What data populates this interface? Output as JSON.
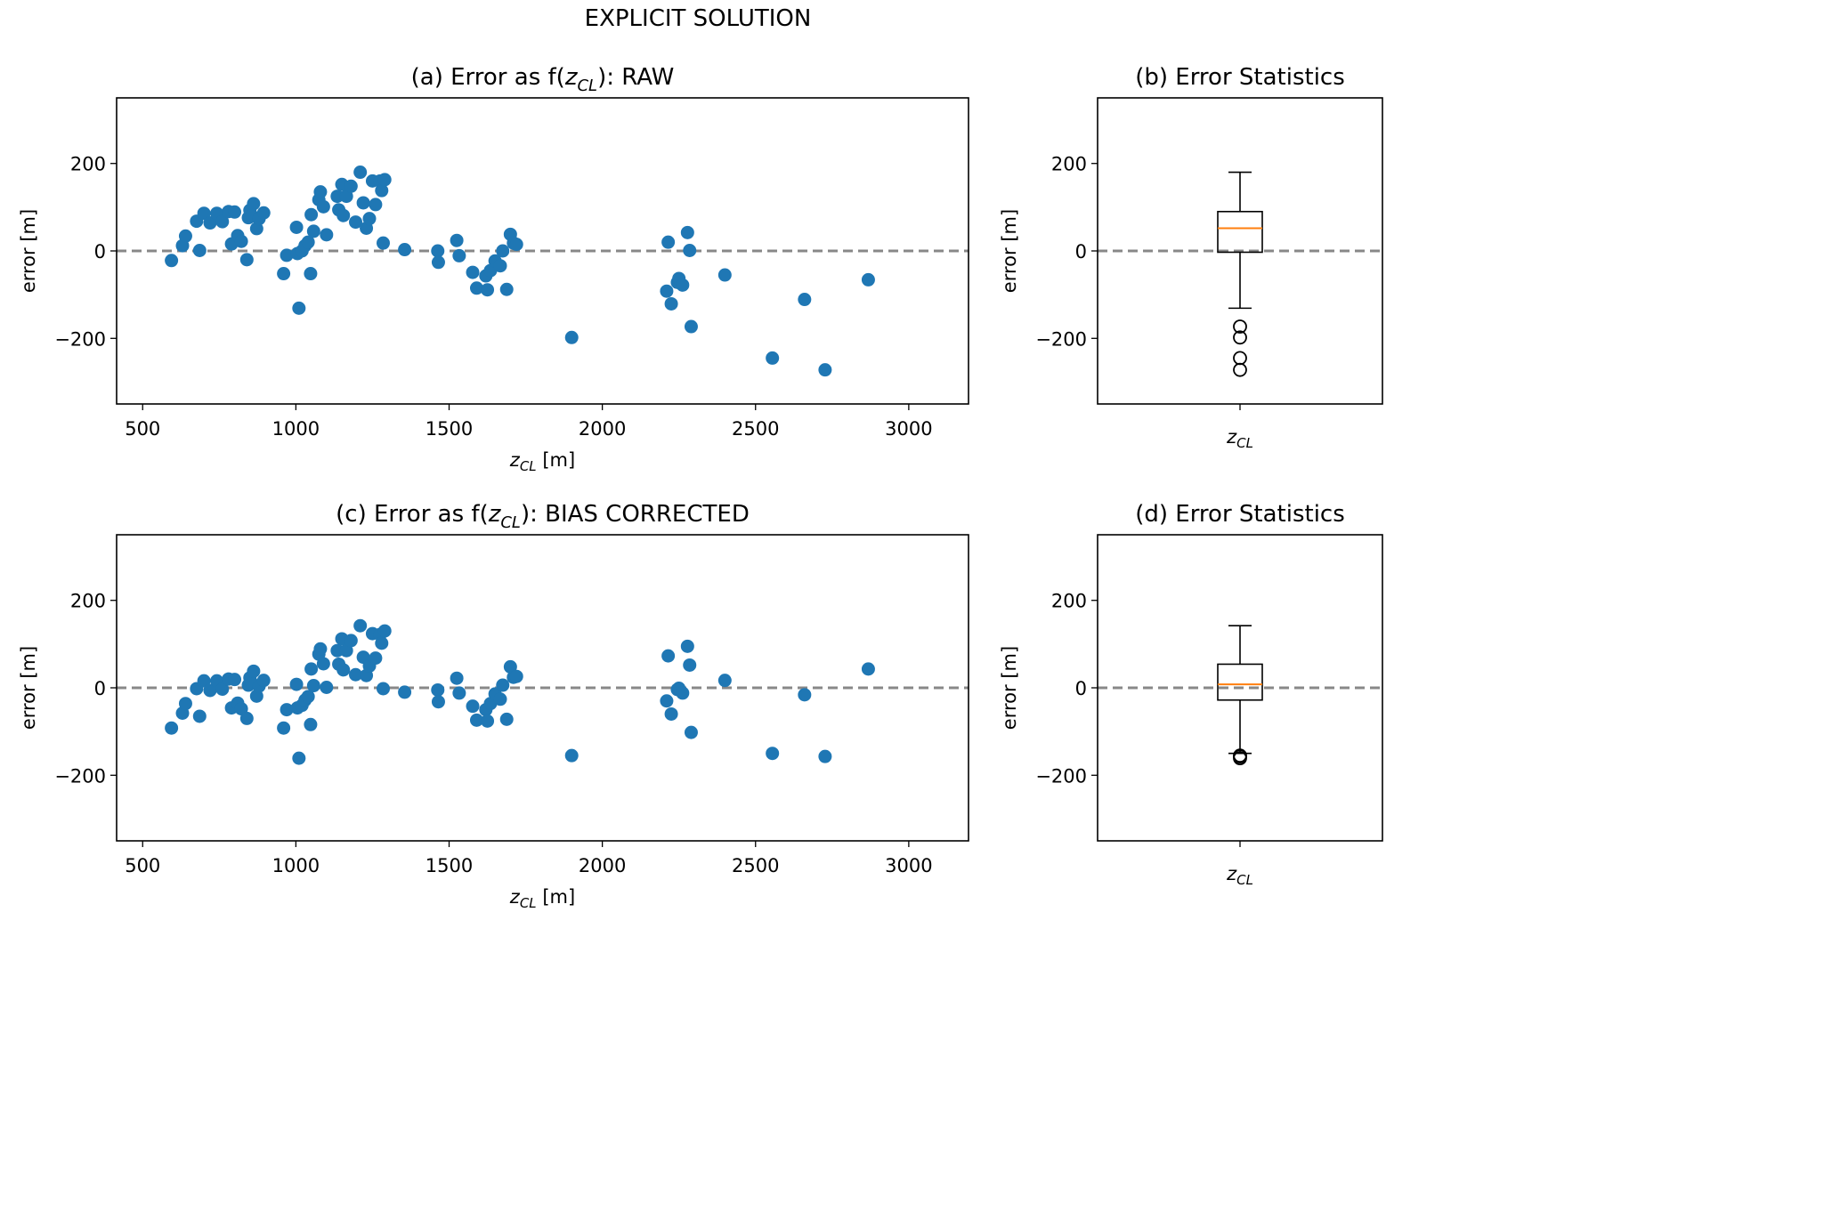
{
  "figure": {
    "title": "EXPLICIT SOLUTION"
  },
  "chart_data": [
    {
      "id": "a",
      "type": "scatter",
      "title": "(a) Error as f(z_CL): RAW",
      "title_parts": [
        "(a) Error as f(",
        "z",
        "CL",
        "): RAW"
      ],
      "xlabel_parts": [
        "z",
        "CL",
        " [m]"
      ],
      "ylabel": "error [m]",
      "xlim": [
        415,
        3195
      ],
      "ylim": [
        -350,
        350
      ],
      "xticks": [
        500,
        1000,
        1500,
        2000,
        2500,
        3000
      ],
      "yticks": [
        -200,
        0,
        200
      ],
      "ytick_labels": [
        "−200",
        "0",
        "200"
      ],
      "reference_line": 0,
      "marker_color": "#1f77b4",
      "line_color": "#888888",
      "points": [
        [
          594,
          -22
        ],
        [
          630,
          12
        ],
        [
          640,
          34
        ],
        [
          676,
          68
        ],
        [
          686,
          1
        ],
        [
          700,
          86
        ],
        [
          720,
          64
        ],
        [
          742,
          86
        ],
        [
          760,
          67
        ],
        [
          780,
          90
        ],
        [
          790,
          16
        ],
        [
          800,
          89
        ],
        [
          810,
          35
        ],
        [
          822,
          22
        ],
        [
          840,
          -20
        ],
        [
          845,
          76
        ],
        [
          850,
          93
        ],
        [
          857,
          80
        ],
        [
          862,
          108
        ],
        [
          872,
          51
        ],
        [
          880,
          74
        ],
        [
          895,
          87
        ],
        [
          960,
          -52
        ],
        [
          970,
          -10
        ],
        [
          1002,
          54
        ],
        [
          1005,
          -6
        ],
        [
          1010,
          -131
        ],
        [
          1020,
          0
        ],
        [
          1030,
          12
        ],
        [
          1040,
          20
        ],
        [
          1048,
          -52
        ],
        [
          1050,
          83
        ],
        [
          1058,
          45
        ],
        [
          1075,
          117
        ],
        [
          1080,
          135
        ],
        [
          1090,
          101
        ],
        [
          1100,
          37
        ],
        [
          1135,
          125
        ],
        [
          1140,
          94
        ],
        [
          1150,
          152
        ],
        [
          1155,
          81
        ],
        [
          1165,
          125
        ],
        [
          1180,
          148
        ],
        [
          1195,
          66
        ],
        [
          1210,
          180
        ],
        [
          1220,
          110
        ],
        [
          1230,
          52
        ],
        [
          1240,
          74
        ],
        [
          1250,
          160
        ],
        [
          1260,
          106
        ],
        [
          1275,
          160
        ],
        [
          1280,
          138
        ],
        [
          1285,
          18
        ],
        [
          1290,
          163
        ],
        [
          1355,
          3
        ],
        [
          1463,
          0
        ],
        [
          1465,
          -26
        ],
        [
          1525,
          24
        ],
        [
          1533,
          -11
        ],
        [
          1577,
          -49
        ],
        [
          1590,
          -85
        ],
        [
          1620,
          -57
        ],
        [
          1625,
          -89
        ],
        [
          1635,
          -45
        ],
        [
          1650,
          -23
        ],
        [
          1667,
          -34
        ],
        [
          1675,
          0
        ],
        [
          1688,
          -88
        ],
        [
          1700,
          38
        ],
        [
          1710,
          18
        ],
        [
          1720,
          15
        ],
        [
          1900,
          -198
        ],
        [
          2210,
          -92
        ],
        [
          2215,
          20
        ],
        [
          2225,
          -121
        ],
        [
          2245,
          -72
        ],
        [
          2250,
          -63
        ],
        [
          2262,
          -78
        ],
        [
          2278,
          42
        ],
        [
          2285,
          1
        ],
        [
          2290,
          -173
        ],
        [
          2400,
          -55
        ],
        [
          2555,
          -245
        ],
        [
          2660,
          -111
        ],
        [
          2727,
          -272
        ],
        [
          2868,
          -66
        ]
      ]
    },
    {
      "id": "b",
      "type": "box",
      "title": "(b) Error Statistics",
      "xlabel_parts": [
        "z",
        "CL"
      ],
      "ylabel": "error [m]",
      "ylim": [
        -350,
        350
      ],
      "yticks": [
        -200,
        0,
        200
      ],
      "ytick_labels": [
        "−200",
        "0",
        "200"
      ],
      "reference_line": 0,
      "box": {
        "whisker_low": -131,
        "q1": -3,
        "median": 52,
        "q3": 90,
        "whisker_high": 180,
        "outliers": [
          -173,
          -198,
          -245,
          -272
        ]
      },
      "median_color": "#ff7f0e",
      "line_color": "#888888"
    },
    {
      "id": "c",
      "type": "scatter",
      "title": "(c) Error as f(z_CL): BIAS CORRECTED",
      "title_parts": [
        "(c) Error as f(",
        "z",
        "CL",
        "): BIAS CORRECTED"
      ],
      "xlabel_parts": [
        "z",
        "CL",
        " [m]"
      ],
      "ylabel": "error [m]",
      "xlim": [
        415,
        3195
      ],
      "ylim": [
        -350,
        350
      ],
      "xticks": [
        500,
        1000,
        1500,
        2000,
        2500,
        3000
      ],
      "yticks": [
        -200,
        0,
        200
      ],
      "ytick_labels": [
        "−200",
        "0",
        "200"
      ],
      "reference_line": 0,
      "marker_color": "#1f77b4",
      "line_color": "#888888",
      "points": [
        [
          594,
          -92
        ],
        [
          630,
          -58
        ],
        [
          640,
          -36
        ],
        [
          676,
          -2
        ],
        [
          686,
          -65
        ],
        [
          700,
          16
        ],
        [
          720,
          -6
        ],
        [
          742,
          16
        ],
        [
          760,
          -3
        ],
        [
          780,
          20
        ],
        [
          790,
          -46
        ],
        [
          800,
          19
        ],
        [
          810,
          -35
        ],
        [
          822,
          -48
        ],
        [
          840,
          -70
        ],
        [
          845,
          6
        ],
        [
          850,
          23
        ],
        [
          857,
          10
        ],
        [
          862,
          38
        ],
        [
          872,
          -19
        ],
        [
          880,
          4
        ],
        [
          895,
          17
        ],
        [
          960,
          -92
        ],
        [
          970,
          -50
        ],
        [
          1002,
          8
        ],
        [
          1005,
          -46
        ],
        [
          1010,
          -161
        ],
        [
          1020,
          -40
        ],
        [
          1030,
          -28
        ],
        [
          1040,
          -20
        ],
        [
          1048,
          -84
        ],
        [
          1050,
          43
        ],
        [
          1058,
          5
        ],
        [
          1075,
          77
        ],
        [
          1080,
          89
        ],
        [
          1090,
          55
        ],
        [
          1100,
          1
        ],
        [
          1135,
          85
        ],
        [
          1140,
          54
        ],
        [
          1150,
          112
        ],
        [
          1155,
          41
        ],
        [
          1165,
          85
        ],
        [
          1180,
          108
        ],
        [
          1195,
          30
        ],
        [
          1210,
          142
        ],
        [
          1220,
          70
        ],
        [
          1230,
          28
        ],
        [
          1240,
          50
        ],
        [
          1250,
          124
        ],
        [
          1260,
          68
        ],
        [
          1275,
          122
        ],
        [
          1280,
          102
        ],
        [
          1285,
          -2
        ],
        [
          1290,
          130
        ],
        [
          1355,
          -10
        ],
        [
          1463,
          -5
        ],
        [
          1465,
          -32
        ],
        [
          1525,
          22
        ],
        [
          1533,
          -12
        ],
        [
          1577,
          -42
        ],
        [
          1590,
          -74
        ],
        [
          1620,
          -50
        ],
        [
          1625,
          -76
        ],
        [
          1635,
          -36
        ],
        [
          1650,
          -14
        ],
        [
          1667,
          -26
        ],
        [
          1675,
          6
        ],
        [
          1688,
          -72
        ],
        [
          1700,
          48
        ],
        [
          1710,
          24
        ],
        [
          1720,
          26
        ],
        [
          1900,
          -155
        ],
        [
          2210,
          -30
        ],
        [
          2215,
          73
        ],
        [
          2225,
          -60
        ],
        [
          2245,
          -4
        ],
        [
          2250,
          -1
        ],
        [
          2262,
          -12
        ],
        [
          2278,
          95
        ],
        [
          2285,
          52
        ],
        [
          2290,
          -102
        ],
        [
          2400,
          17
        ],
        [
          2555,
          -150
        ],
        [
          2660,
          -16
        ],
        [
          2727,
          -157
        ],
        [
          2868,
          43
        ]
      ]
    },
    {
      "id": "d",
      "type": "box",
      "title": "(d) Error Statistics",
      "xlabel_parts": [
        "z",
        "CL"
      ],
      "ylabel": "error [m]",
      "ylim": [
        -350,
        350
      ],
      "yticks": [
        -200,
        0,
        200
      ],
      "ytick_labels": [
        "−200",
        "0",
        "200"
      ],
      "reference_line": 0,
      "box": {
        "whisker_low": -150,
        "q1": -28,
        "median": 8,
        "q3": 54,
        "whisker_high": 142,
        "outliers": [
          -155,
          -157,
          -161
        ]
      },
      "median_color": "#ff7f0e",
      "line_color": "#888888"
    }
  ]
}
